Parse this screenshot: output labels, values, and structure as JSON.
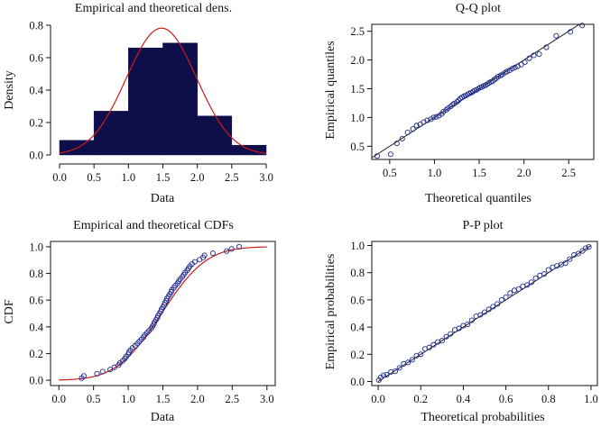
{
  "chart_data": [
    {
      "type": "bar",
      "title": "Empirical and theoretical dens.",
      "xlabel": "Data",
      "ylabel": "Density",
      "xlim": [
        0,
        3.0
      ],
      "ylim": [
        0,
        0.8
      ],
      "xticks": [
        "0.0",
        "0.5",
        "1.0",
        "1.5",
        "2.0",
        "2.5",
        "3.0"
      ],
      "yticks": [
        "0.0",
        "0.2",
        "0.4",
        "0.6",
        "0.8"
      ],
      "bins": [
        {
          "x0": 0.0,
          "x1": 0.5,
          "density": 0.09
        },
        {
          "x0": 0.5,
          "x1": 1.0,
          "density": 0.27
        },
        {
          "x0": 1.0,
          "x1": 1.5,
          "density": 0.66
        },
        {
          "x0": 1.5,
          "x1": 2.0,
          "density": 0.69
        },
        {
          "x0": 2.0,
          "x1": 2.5,
          "density": 0.24
        },
        {
          "x0": 2.5,
          "x1": 3.0,
          "density": 0.06
        }
      ],
      "theoretical": {
        "dist": "normal",
        "mean": 1.48,
        "sd": 0.51
      },
      "colors": {
        "bars": "#0e0e4a",
        "curve": "#cc1b1b"
      }
    },
    {
      "type": "scatter",
      "title": "Q-Q plot",
      "xlabel": "Theoretical quantiles",
      "ylabel": "Empirical quantiles",
      "xlim": [
        0.3,
        2.78
      ],
      "ylim": [
        0.27,
        2.62
      ],
      "xticks": [
        "0.5",
        "1.0",
        "1.5",
        "2.0",
        "2.5"
      ],
      "yticks": [
        "0.5",
        "1.0",
        "1.5",
        "2.0",
        "2.5"
      ],
      "reference_line": "y = x",
      "points_x": [
        0.36,
        0.51,
        0.58,
        0.64,
        0.7,
        0.76,
        0.8,
        0.84,
        0.88,
        0.92,
        0.96,
        0.99,
        1.02,
        1.05,
        1.08,
        1.1,
        1.13,
        1.15,
        1.18,
        1.2,
        1.22,
        1.25,
        1.27,
        1.29,
        1.31,
        1.33,
        1.35,
        1.37,
        1.39,
        1.41,
        1.43,
        1.45,
        1.47,
        1.49,
        1.51,
        1.53,
        1.55,
        1.57,
        1.59,
        1.61,
        1.63,
        1.65,
        1.67,
        1.69,
        1.71,
        1.74,
        1.76,
        1.79,
        1.81,
        1.84,
        1.87,
        1.9,
        1.93,
        1.97,
        2.01,
        2.06,
        2.11,
        2.17,
        2.25,
        2.36,
        2.52,
        2.65
      ],
      "points_y": [
        0.33,
        0.36,
        0.55,
        0.63,
        0.74,
        0.8,
        0.86,
        0.88,
        0.92,
        0.95,
        0.97,
        1.0,
        1.01,
        1.03,
        1.06,
        1.1,
        1.13,
        1.16,
        1.19,
        1.22,
        1.24,
        1.27,
        1.3,
        1.33,
        1.35,
        1.37,
        1.38,
        1.4,
        1.42,
        1.43,
        1.45,
        1.47,
        1.48,
        1.5,
        1.52,
        1.53,
        1.55,
        1.56,
        1.58,
        1.6,
        1.62,
        1.63,
        1.66,
        1.68,
        1.71,
        1.73,
        1.75,
        1.78,
        1.8,
        1.82,
        1.85,
        1.87,
        1.89,
        1.92,
        1.96,
        2.03,
        2.08,
        2.1,
        2.22,
        2.42,
        2.49,
        2.6
      ],
      "colors": {
        "points": "#1e2a8c",
        "line": "#111111"
      }
    },
    {
      "type": "line",
      "title": "Empirical and theoretical CDFs",
      "xlabel": "Data",
      "ylabel": "CDF",
      "xlim": [
        0,
        3.0
      ],
      "ylim": [
        0,
        1.0
      ],
      "xticks": [
        "0.0",
        "0.5",
        "1.0",
        "1.5",
        "2.0",
        "2.5",
        "3.0"
      ],
      "yticks": [
        "0.0",
        "0.2",
        "0.4",
        "0.6",
        "0.8",
        "1.0"
      ],
      "theoretical": {
        "dist": "normal",
        "mean": 1.48,
        "sd": 0.51
      },
      "empirical_x": [
        0.33,
        0.36,
        0.55,
        0.63,
        0.74,
        0.8,
        0.86,
        0.88,
        0.92,
        0.95,
        0.97,
        1.0,
        1.01,
        1.03,
        1.06,
        1.1,
        1.13,
        1.16,
        1.19,
        1.22,
        1.24,
        1.27,
        1.3,
        1.33,
        1.35,
        1.37,
        1.38,
        1.4,
        1.42,
        1.43,
        1.45,
        1.47,
        1.48,
        1.5,
        1.52,
        1.53,
        1.55,
        1.56,
        1.58,
        1.6,
        1.62,
        1.63,
        1.66,
        1.68,
        1.71,
        1.73,
        1.75,
        1.78,
        1.8,
        1.82,
        1.85,
        1.87,
        1.89,
        1.92,
        1.96,
        2.03,
        2.08,
        2.1,
        2.22,
        2.42,
        2.49,
        2.6
      ],
      "colors": {
        "points": "#1e2a8c",
        "curve": "#cc1b1b"
      }
    },
    {
      "type": "scatter",
      "title": "P-P plot",
      "xlabel": "Theoretical probabilities",
      "ylabel": "Empirical probabilities",
      "xlim": [
        -0.03,
        1.03
      ],
      "ylim": [
        -0.03,
        1.03
      ],
      "xticks": [
        "0.0",
        "0.2",
        "0.4",
        "0.6",
        "0.8",
        "1.0"
      ],
      "yticks": [
        "0.0",
        "0.2",
        "0.4",
        "0.6",
        "0.8",
        "1.0"
      ],
      "reference_line": "y = x",
      "points_x": [
        0.003,
        0.012,
        0.025,
        0.04,
        0.06,
        0.08,
        0.1,
        0.12,
        0.14,
        0.16,
        0.18,
        0.2,
        0.22,
        0.24,
        0.26,
        0.28,
        0.3,
        0.32,
        0.34,
        0.36,
        0.38,
        0.4,
        0.42,
        0.44,
        0.46,
        0.48,
        0.5,
        0.52,
        0.54,
        0.56,
        0.58,
        0.6,
        0.62,
        0.64,
        0.66,
        0.68,
        0.7,
        0.72,
        0.74,
        0.76,
        0.78,
        0.8,
        0.82,
        0.84,
        0.86,
        0.88,
        0.9,
        0.92,
        0.94,
        0.96,
        0.975,
        0.99
      ],
      "points_y": [
        0.01,
        0.03,
        0.045,
        0.05,
        0.07,
        0.075,
        0.1,
        0.13,
        0.14,
        0.16,
        0.19,
        0.2,
        0.24,
        0.25,
        0.27,
        0.29,
        0.3,
        0.33,
        0.35,
        0.38,
        0.39,
        0.41,
        0.42,
        0.45,
        0.48,
        0.49,
        0.51,
        0.53,
        0.55,
        0.57,
        0.6,
        0.62,
        0.65,
        0.67,
        0.68,
        0.7,
        0.71,
        0.73,
        0.76,
        0.78,
        0.79,
        0.82,
        0.84,
        0.85,
        0.86,
        0.87,
        0.9,
        0.93,
        0.94,
        0.96,
        0.98,
        0.99
      ],
      "colors": {
        "points": "#1e2a8c",
        "line": "#111111"
      }
    }
  ]
}
